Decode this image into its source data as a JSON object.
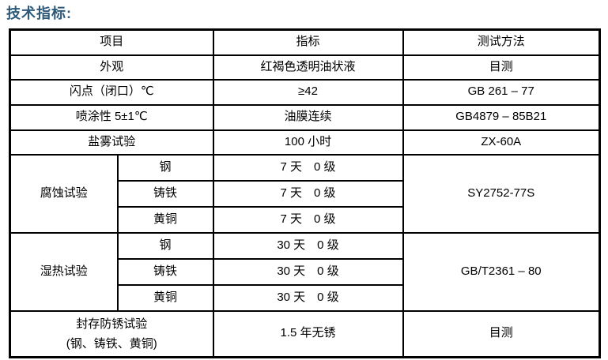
{
  "page_title": "技术指标:",
  "colors": {
    "title_text": "#2e5a7a",
    "table_border": "#000000",
    "body_text": "#000000",
    "background": "#ffffff"
  },
  "table": {
    "headers": {
      "item": "项目",
      "indicator": "指标",
      "method": "测试方法"
    },
    "rows": {
      "appearance": {
        "item": "外观",
        "indicator": "红褐色透明油状液",
        "method": "目测"
      },
      "flash_point": {
        "item": "闪点（闭口）℃",
        "indicator": "≥42",
        "method": "GB 261 – 77"
      },
      "sprayability": {
        "item": "喷涂性 5±1℃",
        "indicator": "油膜连续",
        "method": "GB4879 – 85B21"
      },
      "salt_spray": {
        "item": "盐雾试验",
        "indicator": "100 小时",
        "method": "ZX-60A"
      },
      "corrosion": {
        "item": "腐蚀试验",
        "method": "SY2752-77S",
        "materials": [
          "钢",
          "铸铁",
          "黄铜"
        ],
        "indicators": [
          "7 天　0 级",
          "7 天　0 级",
          "7 天　0 级"
        ]
      },
      "damp_heat": {
        "item": "湿热试验",
        "method": "GB/T2361 – 80",
        "materials": [
          "钢",
          "铸铁",
          "黄铜"
        ],
        "indicators": [
          "30 天　0 级",
          "30 天　0 级",
          "30 天　0 级"
        ]
      },
      "sealed_rust": {
        "item_line1": "封存防锈试验",
        "item_line2": "(钢、铸铁、黄铜)",
        "indicator": "1.5 年无锈",
        "method": "目测"
      }
    }
  }
}
